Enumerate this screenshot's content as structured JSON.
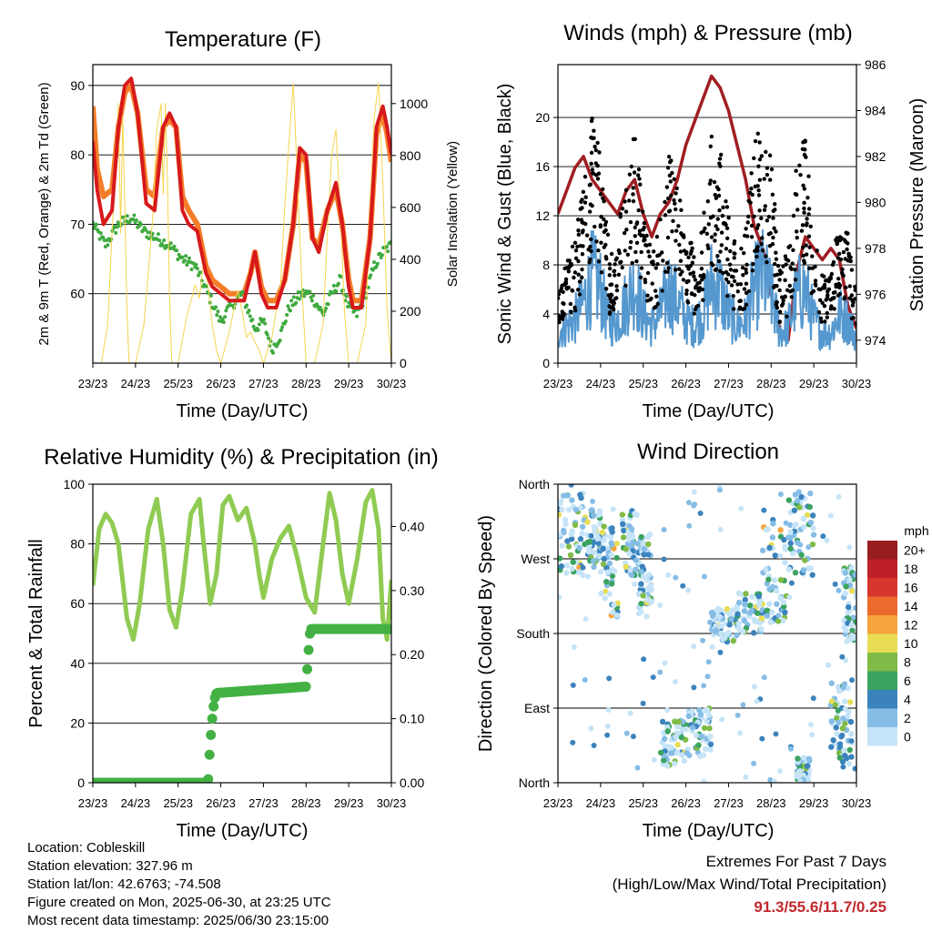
{
  "colors": {
    "t2m": "#d7191c",
    "t9m": "#f57d28",
    "td": "#3faa3f",
    "solar": "#f5d54f",
    "gust": "#000000",
    "wind": "#5598cf",
    "pressure": "#a01e23",
    "rh": "#8fcb52",
    "precip": "#43b143"
  },
  "chart_data": [
    {
      "type": "line",
      "title": "Temperature (F)",
      "xlabel": "Time (Day/UTC)",
      "ylabel": "2m & 9m T (Red, Orange) & 2m Td (Green)",
      "ylabel_right": "Solar Insolation (Yellow)",
      "x_ticks": [
        "23/23",
        "24/23",
        "25/23",
        "26/23",
        "27/23",
        "28/23",
        "29/23",
        "30/23"
      ],
      "y_ticks": [
        "60",
        "70",
        "80",
        "90"
      ],
      "y_ticks_right": [
        "0",
        "200",
        "400",
        "600",
        "800",
        "1000"
      ],
      "ylim": [
        50,
        93
      ],
      "ylim_right": [
        0,
        1150
      ],
      "grid": true,
      "series": [
        {
          "color_key": "t2m",
          "x": [
            0,
            0.1,
            0.25,
            0.45,
            0.6,
            0.75,
            0.9,
            1.05,
            1.25,
            1.45,
            1.65,
            1.8,
            1.95,
            2.1,
            2.25,
            2.45,
            2.65,
            2.8,
            3.0,
            3.2,
            3.4,
            3.55,
            3.7,
            3.8,
            3.95,
            4.1,
            4.3,
            4.5,
            4.7,
            4.85,
            5.0,
            5.15,
            5.3,
            5.5,
            5.7,
            5.85,
            6.0,
            6.1,
            6.3,
            6.5,
            6.65,
            6.8,
            6.9,
            7.0
          ],
          "values": [
            82,
            75,
            70,
            72,
            84,
            90,
            91,
            86,
            73,
            72,
            84,
            86,
            84,
            72,
            70,
            69,
            63,
            61,
            60,
            59,
            59,
            59,
            63,
            66,
            60,
            58,
            58,
            62,
            70,
            81,
            80,
            68,
            66,
            72,
            76,
            70,
            61,
            58,
            58,
            68,
            84,
            87,
            84,
            80
          ]
        },
        {
          "color_key": "t9m",
          "x": [
            0,
            0.1,
            0.25,
            0.45,
            0.6,
            0.75,
            0.9,
            1.05,
            1.25,
            1.45,
            1.65,
            1.8,
            1.95,
            2.1,
            2.25,
            2.45,
            2.65,
            2.8,
            3.0,
            3.2,
            3.4,
            3.55,
            3.7,
            3.8,
            3.95,
            4.1,
            4.3,
            4.5,
            4.7,
            4.85,
            5.0,
            5.15,
            5.3,
            5.5,
            5.7,
            5.85,
            6.0,
            6.1,
            6.3,
            6.5,
            6.65,
            6.8,
            6.9,
            7.0
          ],
          "values": [
            87,
            78,
            74,
            75,
            84,
            89,
            90,
            86,
            75,
            74,
            84,
            85,
            84,
            74,
            72,
            70,
            64,
            62,
            61,
            60,
            60,
            60,
            63,
            66,
            61,
            59,
            59,
            62,
            70,
            80,
            79,
            68,
            67,
            72,
            75,
            70,
            62,
            59,
            59,
            68,
            83,
            86,
            83,
            79
          ]
        },
        {
          "color_key": "td",
          "x": [
            0,
            0.3,
            0.6,
            0.9,
            1.2,
            1.5,
            1.8,
            2.1,
            2.4,
            2.7,
            3.0,
            3.2,
            3.5,
            3.8,
            4.0,
            4.2,
            4.4,
            4.6,
            4.9,
            5.1,
            5.4,
            5.6,
            5.8,
            6.0,
            6.2,
            6.4,
            6.6,
            6.8,
            7.0
          ],
          "values": [
            70,
            67,
            70,
            71,
            69,
            68,
            67,
            65,
            64,
            60,
            56,
            58,
            60,
            55,
            56,
            52,
            54,
            58,
            60,
            60,
            57,
            60,
            62,
            58,
            57,
            60,
            64,
            66,
            67
          ]
        },
        {
          "color_key": "solar",
          "axis": "right",
          "x": [
            0,
            0.2,
            0.35,
            0.45,
            0.55,
            0.6,
            0.65,
            0.7,
            0.75,
            0.8,
            0.85,
            1.0,
            1.2,
            1.4,
            1.5,
            1.6,
            1.65,
            1.7,
            1.75,
            1.8,
            1.85,
            1.9,
            2.0,
            2.2,
            2.4,
            2.5,
            2.6,
            2.7,
            2.8,
            2.9,
            3.0,
            3.2,
            3.4,
            3.5,
            3.6,
            3.7,
            3.8,
            3.9,
            4.0,
            4.2,
            4.4,
            4.5,
            4.6,
            4.7,
            4.8,
            4.9,
            5.0,
            5.2,
            5.4,
            5.5,
            5.6,
            5.7,
            5.8,
            5.9,
            6.0,
            6.2,
            6.4,
            6.5,
            6.6,
            6.7,
            6.8,
            6.9,
            7.0
          ],
          "values": [
            0,
            0,
            150,
            500,
            820,
            1000,
            500,
            950,
            600,
            200,
            0,
            0,
            150,
            550,
            900,
            1000,
            650,
            1000,
            700,
            250,
            0,
            0,
            0,
            180,
            300,
            250,
            400,
            300,
            150,
            50,
            0,
            120,
            280,
            200,
            100,
            120,
            80,
            50,
            0,
            100,
            300,
            600,
            850,
            1080,
            700,
            300,
            0,
            0,
            150,
            500,
            800,
            900,
            600,
            200,
            0,
            0,
            150,
            600,
            950,
            1080,
            700,
            200,
            0
          ]
        }
      ]
    },
    {
      "type": "line",
      "title": "Winds (mph) & Pressure (mb)",
      "xlabel": "Time (Day/UTC)",
      "ylabel": "Sonic Wind & Gust (Blue, Black)",
      "ylabel_right": "Station Pressure (Maroon)",
      "x_ticks": [
        "23/23",
        "24/23",
        "25/23",
        "26/23",
        "27/23",
        "28/23",
        "29/23",
        "30/23"
      ],
      "y_ticks": [
        "0",
        "4",
        "8",
        "12",
        "16",
        "20"
      ],
      "y_ticks_right": [
        "974",
        "976",
        "978",
        "980",
        "982",
        "984",
        "986"
      ],
      "ylim": [
        0,
        24.3
      ],
      "ylim_right": [
        973.0,
        986.0
      ],
      "grid": true,
      "series": [
        {
          "color_key": "pressure",
          "axis": "right",
          "x": [
            0,
            0.2,
            0.4,
            0.6,
            0.8,
            1.0,
            1.2,
            1.4,
            1.6,
            1.8,
            2.0,
            2.2,
            2.4,
            2.6,
            2.8,
            3.0,
            3.2,
            3.4,
            3.6,
            3.8,
            4.0,
            4.2,
            4.4,
            4.6,
            4.8,
            5.0,
            5.2,
            5.4,
            5.6,
            5.8,
            6.0,
            6.2,
            6.4,
            6.6,
            6.8,
            7.0
          ],
          "values": [
            979.5,
            980.5,
            981.5,
            982.0,
            981.0,
            980.5,
            980.0,
            979.5,
            980.5,
            981.0,
            979.5,
            978.5,
            979.5,
            980.0,
            981.0,
            982.5,
            983.5,
            984.5,
            985.5,
            985.0,
            984.0,
            982.5,
            981.0,
            979.0,
            978.0,
            976.0,
            974.5,
            974.0,
            977.0,
            978.5,
            978.0,
            977.5,
            978.0,
            977.5,
            975.5,
            974.5
          ]
        },
        {
          "color_key": "wind",
          "x": [
            0,
            0.2,
            0.4,
            0.6,
            0.8,
            1.0,
            1.2,
            1.4,
            1.6,
            1.8,
            2.0,
            2.2,
            2.4,
            2.6,
            2.8,
            3.0,
            3.2,
            3.4,
            3.6,
            3.8,
            4.0,
            4.2,
            4.4,
            4.6,
            4.8,
            5.0,
            5.2,
            5.4,
            5.6,
            5.8,
            6.0,
            6.2,
            6.4,
            6.6,
            6.8,
            7.0
          ],
          "values": [
            2.5,
            3.0,
            3.5,
            5.0,
            7.0,
            6.0,
            3.0,
            3.5,
            5.0,
            6.5,
            4.0,
            3.0,
            4.0,
            6.0,
            5.0,
            3.5,
            3.0,
            4.0,
            6.5,
            6.0,
            4.0,
            3.0,
            3.5,
            6.0,
            7.0,
            5.5,
            2.5,
            3.0,
            5.5,
            6.0,
            3.5,
            2.5,
            2.5,
            4.0,
            3.5,
            2.0
          ]
        },
        {
          "color_key": "gust",
          "x": [
            0,
            0.2,
            0.4,
            0.6,
            0.8,
            1.0,
            1.2,
            1.4,
            1.6,
            1.8,
            2.0,
            2.2,
            2.4,
            2.6,
            2.8,
            3.0,
            3.2,
            3.4,
            3.6,
            3.8,
            4.0,
            4.2,
            4.4,
            4.6,
            4.8,
            5.0,
            5.2,
            5.4,
            5.6,
            5.8,
            6.0,
            6.2,
            6.4,
            6.6,
            6.8,
            7.0
          ],
          "values": [
            5.0,
            5.5,
            6.5,
            10.0,
            14.0,
            12.0,
            6.0,
            7.0,
            10.0,
            12.5,
            8.0,
            6.0,
            8.0,
            11.5,
            10.0,
            7.0,
            6.0,
            8.0,
            12.0,
            11.5,
            8.0,
            6.0,
            7.0,
            12.0,
            14.0,
            11.0,
            5.0,
            6.0,
            11.0,
            12.0,
            7.0,
            5.0,
            5.0,
            8.0,
            7.0,
            4.0
          ]
        }
      ]
    },
    {
      "type": "line",
      "title": "Relative Humidity (%) & Precipitation (in)",
      "xlabel": "Time (Day/UTC)",
      "ylabel": "Percent & Total Rainfall",
      "x_ticks": [
        "23/23",
        "24/23",
        "25/23",
        "26/23",
        "27/23",
        "28/23",
        "29/23",
        "30/23"
      ],
      "y_ticks": [
        "0",
        "20",
        "40",
        "60",
        "80",
        "100"
      ],
      "y_ticks_right": [
        "0.00",
        "0.10",
        "0.20",
        "0.30",
        "0.40"
      ],
      "ylim": [
        0,
        100
      ],
      "ylim_right": [
        0,
        0.466
      ],
      "grid": true,
      "series": [
        {
          "color_key": "rh",
          "x": [
            0,
            0.15,
            0.3,
            0.45,
            0.6,
            0.8,
            0.95,
            1.1,
            1.3,
            1.5,
            1.65,
            1.8,
            1.95,
            2.1,
            2.3,
            2.5,
            2.6,
            2.75,
            2.9,
            3.05,
            3.2,
            3.4,
            3.6,
            3.8,
            3.9,
            4.0,
            4.2,
            4.4,
            4.6,
            4.8,
            5.0,
            5.2,
            5.4,
            5.55,
            5.7,
            5.85,
            6.0,
            6.2,
            6.4,
            6.55,
            6.7,
            6.8,
            6.9,
            7.0
          ],
          "values": [
            66,
            85,
            90,
            87,
            80,
            55,
            48,
            60,
            85,
            95,
            80,
            58,
            52,
            65,
            90,
            95,
            80,
            60,
            70,
            93,
            96,
            88,
            92,
            80,
            70,
            62,
            75,
            82,
            86,
            75,
            62,
            57,
            80,
            97,
            88,
            70,
            60,
            75,
            94,
            98,
            85,
            55,
            48,
            68
          ]
        },
        {
          "color_key": "precip",
          "axis": "right",
          "x": [
            0,
            2.7,
            2.75,
            2.8,
            2.85,
            2.9,
            5.0,
            5.05,
            5.1,
            7.0
          ],
          "values": [
            0,
            0,
            0.06,
            0.1,
            0.13,
            0.14,
            0.15,
            0.2,
            0.24,
            0.24
          ]
        }
      ]
    },
    {
      "type": "scatter",
      "title": "Wind Direction",
      "xlabel": "Time (Day/UTC)",
      "ylabel": "Direction (Colored By Speed)",
      "x_ticks": [
        "23/23",
        "24/23",
        "25/23",
        "26/23",
        "27/23",
        "28/23",
        "29/23",
        "30/23"
      ],
      "y_ticks": [
        "North",
        "East",
        "South",
        "West",
        "North"
      ],
      "ylim": [
        0,
        360
      ],
      "grid": true,
      "legend": {
        "title": "mph",
        "labels": [
          "20+",
          "18",
          "16",
          "14",
          "12",
          "10",
          "8",
          "6",
          "4",
          "2",
          "0"
        ],
        "colors": [
          "#981d1f",
          "#bd2026",
          "#d7362c",
          "#ed6a2e",
          "#f6a43b",
          "#e8dd55",
          "#7fbb46",
          "#3ba360",
          "#3b83bd",
          "#86bde6",
          "#c6e4f7"
        ]
      },
      "clusters": [
        {
          "x": [
            0.0,
            0.6
          ],
          "dir": [
            250,
            350
          ]
        },
        {
          "x": [
            0.6,
            1.0
          ],
          "dir": [
            260,
            330
          ]
        },
        {
          "x": [
            1.0,
            1.4
          ],
          "dir": [
            200,
            310
          ]
        },
        {
          "x": [
            1.5,
            1.9
          ],
          "dir": [
            250,
            330
          ]
        },
        {
          "x": [
            1.9,
            2.2
          ],
          "dir": [
            200,
            300
          ]
        },
        {
          "x": [
            2.4,
            3.0
          ],
          "dir": [
            20,
            75
          ]
        },
        {
          "x": [
            3.0,
            3.6
          ],
          "dir": [
            30,
            90
          ]
        },
        {
          "x": [
            3.6,
            4.2
          ],
          "dir": [
            170,
            210
          ]
        },
        {
          "x": [
            4.2,
            4.8
          ],
          "dir": [
            180,
            230
          ]
        },
        {
          "x": [
            4.8,
            5.4
          ],
          "dir": [
            190,
            320
          ]
        },
        {
          "x": [
            5.4,
            6.0
          ],
          "dir": [
            250,
            350
          ]
        },
        {
          "x": [
            5.6,
            5.9
          ],
          "dir": [
            0,
            30
          ]
        },
        {
          "x": [
            6.4,
            6.9
          ],
          "dir": [
            20,
            120
          ]
        },
        {
          "x": [
            6.7,
            7.0
          ],
          "dir": [
            170,
            260
          ]
        }
      ]
    }
  ],
  "footer": {
    "location": "Location: Cobleskill",
    "elevation": "Station elevation: 327.96 m",
    "latlon": "Station lat/lon: 42.6763; -74.508",
    "created": "Figure created on Mon, 2025-06-30, at 23:25 UTC",
    "recent": "Most recent data timestamp: 2025/06/30 23:15:00"
  },
  "extremes": {
    "title": "Extremes For Past 7 Days",
    "subtitle": "(High/Low/Max Wind/Total Precipitation)",
    "value": "91.3/55.6/11.7/0.25"
  }
}
